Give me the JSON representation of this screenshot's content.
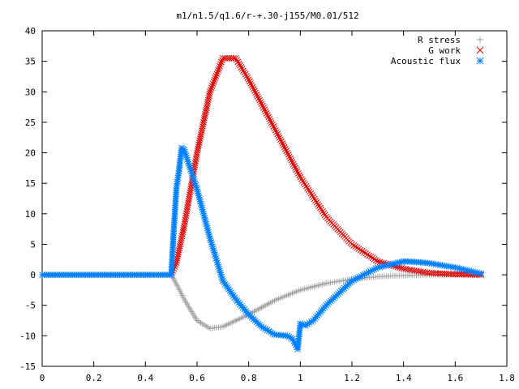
{
  "chart_data": {
    "type": "scatter",
    "title": "m1/n1.5/q1.6/r-+.30-j155/M0.01/512",
    "xlabel": "",
    "ylabel": "",
    "xlim": [
      0,
      1.8
    ],
    "ylim": [
      -15,
      40
    ],
    "grid": false,
    "legend_position": "top-right",
    "x_ticks": [
      "0",
      "0.2",
      "0.4",
      "0.6",
      "0.8",
      "1",
      "1.2",
      "1.4",
      "1.6",
      "1.8"
    ],
    "y_ticks": [
      "-15",
      "-10",
      "-5",
      "0",
      "5",
      "10",
      "15",
      "20",
      "25",
      "30",
      "35",
      "40"
    ],
    "series": [
      {
        "name": "R stress",
        "marker": "plus",
        "color": "#a0a0a0",
        "points": [
          [
            0.5,
            0
          ],
          [
            0.52,
            -1.5
          ],
          [
            0.55,
            -4
          ],
          [
            0.6,
            -7.5
          ],
          [
            0.65,
            -8.8
          ],
          [
            0.7,
            -8.5
          ],
          [
            0.8,
            -6.5
          ],
          [
            0.9,
            -4.2
          ],
          [
            1.0,
            -2.5
          ],
          [
            1.1,
            -1.4
          ],
          [
            1.2,
            -0.7
          ],
          [
            1.3,
            -0.3
          ],
          [
            1.4,
            -0.1
          ],
          [
            1.5,
            0
          ],
          [
            1.6,
            0
          ],
          [
            1.7,
            0
          ]
        ]
      },
      {
        "name": "G work",
        "marker": "cross",
        "color": "#e00000",
        "points": [
          [
            0.5,
            0
          ],
          [
            0.52,
            2
          ],
          [
            0.55,
            8
          ],
          [
            0.6,
            20
          ],
          [
            0.65,
            30
          ],
          [
            0.7,
            35.5
          ],
          [
            0.75,
            35.5
          ],
          [
            0.8,
            32
          ],
          [
            0.9,
            24
          ],
          [
            1.0,
            16
          ],
          [
            1.1,
            9.5
          ],
          [
            1.2,
            5
          ],
          [
            1.3,
            2.2
          ],
          [
            1.4,
            1
          ],
          [
            1.5,
            0.3
          ],
          [
            1.6,
            0.1
          ],
          [
            1.7,
            0
          ]
        ]
      },
      {
        "name": "Acoustic flux",
        "marker": "star",
        "color": "#0080ff",
        "points": [
          [
            0,
            0
          ],
          [
            0.1,
            0
          ],
          [
            0.2,
            0
          ],
          [
            0.3,
            0
          ],
          [
            0.4,
            0
          ],
          [
            0.5,
            0
          ],
          [
            0.51,
            7.5
          ],
          [
            0.52,
            14.2
          ],
          [
            0.53,
            17
          ],
          [
            0.535,
            19
          ],
          [
            0.54,
            20.8
          ],
          [
            0.55,
            20.5
          ],
          [
            0.6,
            14
          ],
          [
            0.65,
            6
          ],
          [
            0.7,
            -1
          ],
          [
            0.75,
            -4
          ],
          [
            0.8,
            -6.5
          ],
          [
            0.85,
            -8.5
          ],
          [
            0.9,
            -9.8
          ],
          [
            0.95,
            -10
          ],
          [
            0.97,
            -10.5
          ],
          [
            0.99,
            -12.2
          ],
          [
            1.0,
            -8
          ],
          [
            1.02,
            -8.3
          ],
          [
            1.05,
            -7.5
          ],
          [
            1.1,
            -5
          ],
          [
            1.2,
            -1
          ],
          [
            1.3,
            1.2
          ],
          [
            1.4,
            2.2
          ],
          [
            1.45,
            2.1
          ],
          [
            1.5,
            1.9
          ],
          [
            1.6,
            1.2
          ],
          [
            1.7,
            0.2
          ]
        ]
      }
    ]
  }
}
